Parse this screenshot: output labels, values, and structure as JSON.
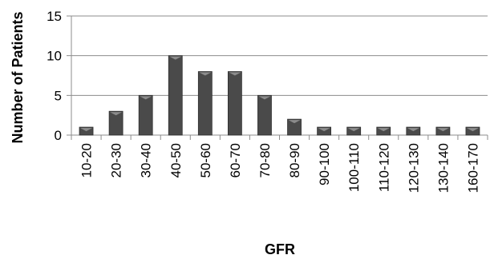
{
  "chart_data": {
    "type": "bar",
    "title": "",
    "xlabel": "GFR",
    "ylabel": "Number of Patients",
    "categories": [
      "10-20",
      "20-30",
      "30-40",
      "40-50",
      "50-60",
      "60-70",
      "70-80",
      "80-90",
      "90-100",
      "100-110",
      "110-120",
      "120-130",
      "130-140",
      "160-170"
    ],
    "values": [
      1,
      3,
      5,
      10,
      8,
      8,
      5,
      2,
      1,
      1,
      1,
      1,
      1,
      1
    ],
    "ylim": [
      0,
      15
    ],
    "yticks": [
      0,
      5,
      10,
      15
    ],
    "grid": true,
    "legend": "none",
    "colors": {
      "bar": "#4a4a4a",
      "bar_highlight": "#8c8c8c",
      "grid": "#8c8c8c"
    }
  }
}
